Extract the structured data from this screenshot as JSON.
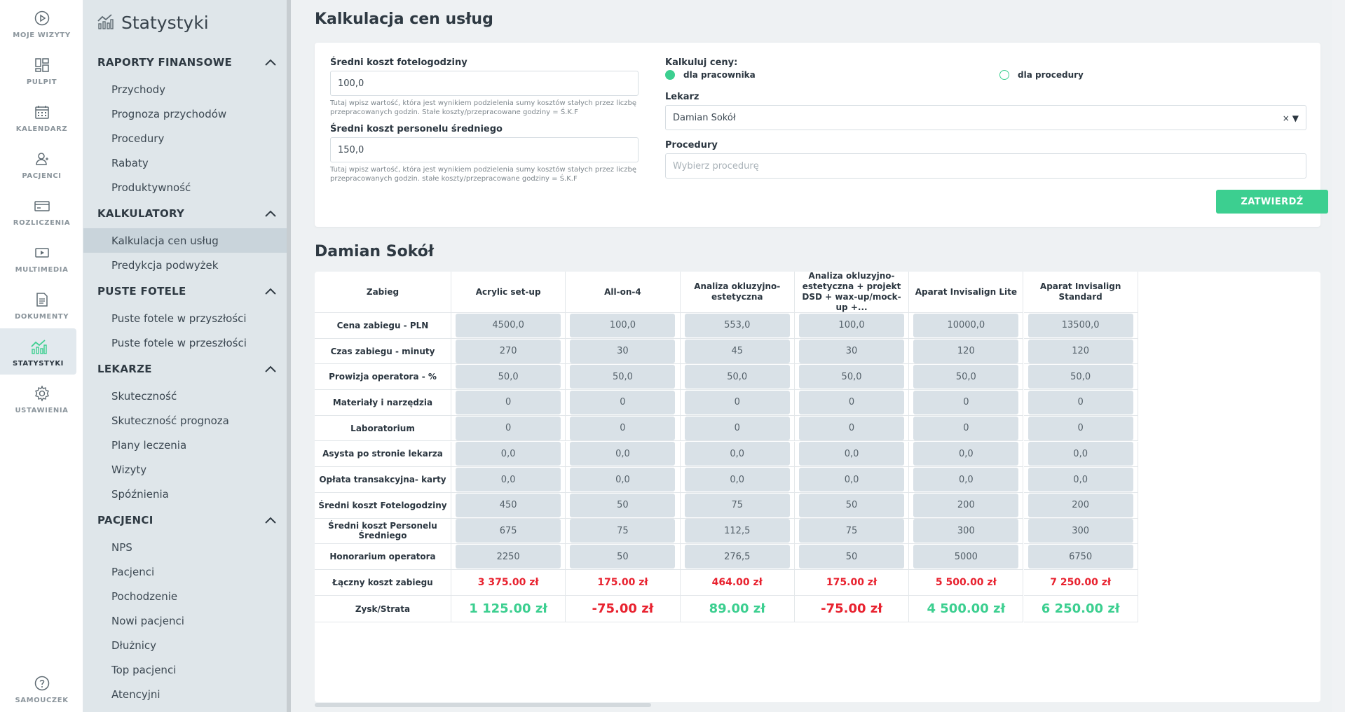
{
  "rail": [
    {
      "label": "MOJE WIZYTY",
      "icon": "play-circle-icon"
    },
    {
      "label": "PULPIT",
      "icon": "dashboard-icon"
    },
    {
      "label": "KALENDARZ",
      "icon": "calendar-icon"
    },
    {
      "label": "PACJENCI",
      "icon": "user-icon"
    },
    {
      "label": "ROZLICZENIA",
      "icon": "card-icon"
    },
    {
      "label": "MULTIMEDIA",
      "icon": "media-icon"
    },
    {
      "label": "DOKUMENTY",
      "icon": "document-icon"
    },
    {
      "label": "STATYSTYKI",
      "icon": "stats-icon",
      "active": true
    },
    {
      "label": "USTAWIENIA",
      "icon": "gear-icon"
    },
    {
      "label": "SAMOUCZEK",
      "icon": "help-icon"
    }
  ],
  "sidebar": {
    "title": "Statystyki",
    "sections": [
      {
        "label": "RAPORTY FINANSOWE",
        "items": [
          "Przychody",
          "Prognoza przychodów",
          "Procedury",
          "Rabaty",
          "Produktywność"
        ]
      },
      {
        "label": "KALKULATORY",
        "items": [
          "Kalkulacja cen usług",
          "Predykcja podwyżek"
        ]
      },
      {
        "label": "PUSTE FOTELE",
        "items": [
          "Puste fotele w przyszłości",
          "Puste fotele w przeszłości"
        ]
      },
      {
        "label": "LEKARZE",
        "items": [
          "Skuteczność",
          "Skuteczność prognoza",
          "Plany leczenia",
          "Wizyty",
          "Spóźnienia"
        ]
      },
      {
        "label": "PACJENCI",
        "items": [
          "NPS",
          "Pacjenci",
          "Pochodzenie",
          "Nowi pacjenci",
          "Dłużnicy",
          "Top pacjenci",
          "Atencyjni"
        ]
      }
    ],
    "active_item": "Kalkulacja cen usług"
  },
  "page": {
    "title": "Kalkulacja cen usług",
    "form": {
      "f1_label": "Średni koszt fotelogodziny",
      "f1_value": "100,0",
      "f1_help": "Tutaj wpisz wartość, która jest wynikiem podzielenia sumy kosztów stałych przez liczbę przepracowanych godzin. Stałe koszty/przepracowane godziny = Ś.K.F",
      "f2_label": "Średni koszt personelu średniego",
      "f2_value": "150,0",
      "f2_help": "Tutaj wpisz wartość, która jest wynikiem podzielenia sumy kosztów stałych przez liczbę przepracowanych godzin. stałe koszty/przepracowane godziny = Ś.K.F",
      "calc_label": "Kalkuluj ceny:",
      "radio1": "dla pracownika",
      "radio2": "dla procedury",
      "doctor_label": "Lekarz",
      "doctor_value": "Damian Sokół",
      "proc_label": "Procedury",
      "proc_placeholder": "Wybierz procedurę",
      "submit": "ZATWIERDŹ"
    },
    "doctor_title": "Damian Sokół"
  },
  "table": {
    "row_header": "Zabieg",
    "columns": [
      "Acrylic set-up",
      "All-on-4",
      "Analiza okluzyjno-estetyczna",
      "Analiza okluzyjno-estetyczna + projekt DSD + wax-up/mock-up +...",
      "Aparat Invisalign Lite",
      "Aparat Invisalign Standard"
    ],
    "rows": [
      {
        "label": "Cena zabiegu - PLN",
        "values": [
          "4500,0",
          "100,0",
          "553,0",
          "100,0",
          "10000,0",
          "13500,0"
        ]
      },
      {
        "label": "Czas zabiegu - minuty",
        "values": [
          "270",
          "30",
          "45",
          "30",
          "120",
          "120"
        ]
      },
      {
        "label": "Prowizja operatora - %",
        "values": [
          "50,0",
          "50,0",
          "50,0",
          "50,0",
          "50,0",
          "50,0"
        ]
      },
      {
        "label": "Materiały i narzędzia",
        "values": [
          "0",
          "0",
          "0",
          "0",
          "0",
          "0"
        ]
      },
      {
        "label": "Laboratorium",
        "values": [
          "0",
          "0",
          "0",
          "0",
          "0",
          "0"
        ]
      },
      {
        "label": "Asysta po stronie lekarza",
        "values": [
          "0,0",
          "0,0",
          "0,0",
          "0,0",
          "0,0",
          "0,0"
        ]
      },
      {
        "label": "Opłata transakcyjna- karty",
        "values": [
          "0,0",
          "0,0",
          "0,0",
          "0,0",
          "0,0",
          "0,0"
        ]
      },
      {
        "label": "Średni koszt Fotelogodziny",
        "values": [
          "450",
          "50",
          "75",
          "50",
          "200",
          "200"
        ]
      },
      {
        "label": "Średni koszt Personelu Średniego",
        "values": [
          "675",
          "75",
          "112,5",
          "75",
          "300",
          "300"
        ]
      },
      {
        "label": "Honorarium operatora",
        "values": [
          "2250",
          "50",
          "276,5",
          "50",
          "5000",
          "6750"
        ]
      }
    ],
    "total_label": "Łączny koszt zabiegu",
    "totals": [
      "3 375.00 zł",
      "175.00 zł",
      "464.00 zł",
      "175.00 zł",
      "5 500.00 zł",
      "7 250.00 zł"
    ],
    "profit_label": "Zysk/Strata",
    "profits": [
      "1 125.00 zł",
      "-75.00 zł",
      "89.00 zł",
      "-75.00 zł",
      "4 500.00 zł",
      "6 250.00 zł"
    ],
    "profit_positive": [
      true,
      false,
      true,
      false,
      true,
      true
    ]
  },
  "colors": {
    "accent": "#3ccf90",
    "negative": "#e8222f"
  }
}
